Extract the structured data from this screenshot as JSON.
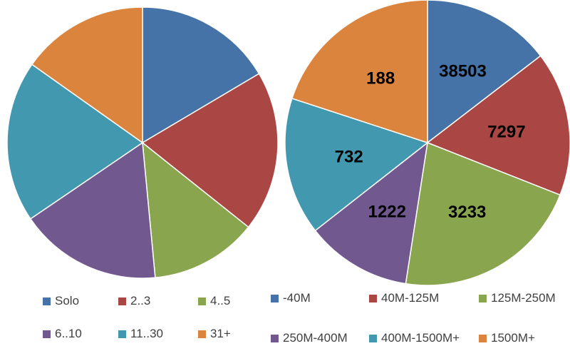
{
  "chart_data": [
    {
      "type": "pie",
      "categories": [
        "Solo",
        "2..3",
        "4..5",
        "6..10",
        "11..30",
        "31+"
      ],
      "values": [
        16.5,
        19.2,
        12.8,
        17.0,
        19.3,
        15.2
      ],
      "unit": "percent",
      "colors": [
        "#4572A7",
        "#AA4643",
        "#89A54E",
        "#71588F",
        "#4198AF",
        "#DB843D"
      ],
      "data_labels": [],
      "legend": {
        "entries": [
          "Solo",
          "2..3",
          "4..5",
          "6..10",
          "11..30",
          "31+"
        ],
        "placement": "bottom"
      }
    },
    {
      "type": "pie",
      "categories": [
        "-40M",
        "40M-125M",
        "125M-250M",
        "250M-400M",
        "400M-1500M+",
        "1500M+"
      ],
      "values": [
        14.6,
        16.4,
        21.5,
        12.0,
        15.6,
        20.0
      ],
      "unit": "percent",
      "colors": [
        "#4572A7",
        "#AA4643",
        "#89A54E",
        "#71588F",
        "#4198AF",
        "#DB843D"
      ],
      "data_labels": [
        "38503",
        "7297",
        "3233",
        "1222",
        "732",
        "188"
      ],
      "legend": {
        "entries": [
          "-40M",
          "40M-125M",
          "125M-250M",
          "250M-400M",
          "400M-1500M+",
          "1500M+"
        ],
        "placement": "bottom"
      }
    }
  ]
}
